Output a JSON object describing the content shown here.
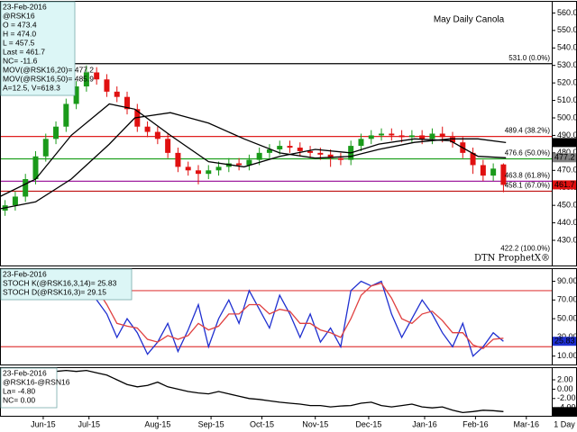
{
  "chart_data": [
    {
      "type": "candlestick",
      "title": "May Daily Canola",
      "watermark": "DTN ProphetX®",
      "info": [
        "23-Feb-2016",
        "@RSK16",
        "O = 473.4",
        "H = 474.0",
        "L = 457.5",
        "Last = 461.7",
        "NC= -11.6",
        "MOV(@RSK16,20)= 477.2",
        "MOV(@RSK16,50)= 485.9",
        "A=12.5, V=618.3"
      ],
      "info_color": "#dcf6f6",
      "up_color": "#1a9a1a",
      "down_color": "#e01010",
      "x": [
        2,
        6,
        10,
        14,
        18,
        22,
        26,
        30,
        34,
        38,
        42,
        46,
        50,
        54,
        58,
        62,
        66,
        70,
        74,
        78,
        82,
        86,
        90,
        94,
        98,
        102,
        106,
        110,
        114,
        118,
        122,
        126,
        130,
        134,
        138,
        142,
        146,
        150,
        154,
        158,
        162,
        166,
        170,
        174,
        178,
        182,
        186,
        190,
        194,
        198
      ],
      "open": [
        447,
        450,
        455,
        465,
        478,
        488,
        495,
        508,
        518,
        526,
        522,
        515,
        512,
        505,
        495,
        492,
        488,
        480,
        472,
        470,
        468,
        470,
        472,
        474,
        473,
        476,
        480,
        482,
        484,
        483,
        481,
        480,
        479,
        477,
        476,
        484,
        488,
        490,
        491,
        490,
        489,
        490,
        488,
        491,
        489,
        486,
        480,
        473,
        467,
        473.4
      ],
      "high": [
        453,
        458,
        468,
        481,
        491,
        498,
        511,
        521,
        530,
        529,
        525,
        518,
        515,
        508,
        498,
        495,
        491,
        483,
        475,
        473,
        473,
        475,
        477,
        477,
        479,
        483,
        485,
        487,
        487,
        486,
        484,
        483,
        482,
        480,
        487,
        491,
        493,
        494,
        494,
        493,
        493,
        493,
        494,
        495,
        492,
        489,
        483,
        476,
        474,
        474
      ],
      "low": [
        444,
        447,
        452,
        462,
        475,
        485,
        492,
        505,
        515,
        519,
        512,
        509,
        502,
        492,
        489,
        485,
        477,
        469,
        467,
        462,
        465,
        467,
        469,
        470,
        470,
        473,
        477,
        479,
        480,
        478,
        477,
        476,
        472,
        473,
        473,
        481,
        485,
        487,
        487,
        486,
        486,
        485,
        485,
        486,
        483,
        477,
        468,
        464,
        464,
        457.5
      ],
      "close": [
        450,
        455,
        465,
        478,
        488,
        495,
        508,
        518,
        526,
        522,
        515,
        512,
        505,
        495,
        492,
        488,
        480,
        472,
        470,
        468,
        470,
        472,
        474,
        473,
        476,
        480,
        482,
        484,
        483,
        481,
        480,
        479,
        477,
        476,
        484,
        488,
        490,
        491,
        490,
        489,
        490,
        488,
        491,
        489,
        486,
        480,
        473,
        467,
        471,
        461.7
      ],
      "overlays": [
        {
          "color": "#000000",
          "x": [
            0,
            14,
            28,
            43,
            53,
            67,
            82,
            96,
            110,
            124,
            138,
            149,
            163,
            177,
            188,
            199
          ],
          "values": [
            455,
            465,
            490,
            508,
            505,
            490,
            475,
            472,
            478,
            482,
            480,
            485,
            488,
            487,
            478,
            477.2
          ]
        },
        {
          "color": "#000000",
          "x": [
            0,
            14,
            28,
            43,
            53,
            67,
            82,
            96,
            110,
            124,
            138,
            149,
            163,
            177,
            188,
            199
          ],
          "values": [
            448,
            452,
            465,
            485,
            500,
            503,
            497,
            488,
            480,
            477,
            478,
            482,
            486,
            488,
            488,
            485.9
          ]
        }
      ],
      "levels": [
        {
          "value": 531.0,
          "label": "531.0 (0.0%)",
          "color": "#000000"
        },
        {
          "value": 489.4,
          "label": "489.4 (38.2%)",
          "color": "#e02020"
        },
        {
          "value": 476.6,
          "label": "476.6 (50.0%)",
          "color": "#20a020"
        },
        {
          "value": 463.8,
          "label": "463.8 (61.8%)",
          "color": "#a020a0"
        },
        {
          "value": 458.1,
          "label": "458.1 (67.0%)",
          "color": "#c01010"
        },
        {
          "value": 422.2,
          "label": "422.2 (100.0%)",
          "color": null
        }
      ],
      "last_labels": [
        {
          "value": 485.9,
          "label": "485.9",
          "color": "#000000"
        },
        {
          "value": 477.2,
          "label": "477.2",
          "color": "#808080"
        },
        {
          "value": 461.7,
          "label": "461.7",
          "color": "#e01010"
        }
      ],
      "ylim": [
        415.6,
        566.9
      ],
      "yticks": [
        {
          "value": 430,
          "label": "430.0"
        },
        {
          "value": 440,
          "label": "440.0"
        },
        {
          "value": 450,
          "label": "450.0"
        },
        {
          "value": 460,
          "label": "460.0"
        },
        {
          "value": 470,
          "label": "470.0"
        },
        {
          "value": 480,
          "label": "480.0"
        },
        {
          "value": 490,
          "label": "490.0"
        },
        {
          "value": 500,
          "label": "500.0"
        },
        {
          "value": 510,
          "label": "510.0"
        },
        {
          "value": 520,
          "label": "520.0"
        },
        {
          "value": 530,
          "label": "530.0"
        },
        {
          "value": 540,
          "label": "540.0"
        },
        {
          "value": 550,
          "label": "550.0"
        },
        {
          "value": 560,
          "label": "560.0"
        }
      ]
    },
    {
      "type": "line",
      "info": [
        "23-Feb-2016",
        "STOCH K(@RSK16,3,14)= 25.83",
        "STOCH D(@RSK16,3)= 29.15"
      ],
      "info_color": "#dcf6f6",
      "x": [
        2,
        6,
        10,
        14,
        18,
        22,
        26,
        30,
        34,
        38,
        42,
        46,
        50,
        54,
        58,
        62,
        66,
        70,
        74,
        78,
        82,
        86,
        90,
        94,
        98,
        102,
        106,
        110,
        114,
        118,
        122,
        126,
        130,
        134,
        138,
        142,
        146,
        150,
        154,
        158,
        162,
        166,
        170,
        174,
        178,
        182,
        186,
        190,
        194,
        198
      ],
      "series": [
        {
          "color": "#1f2fd0",
          "values": [
            null,
            null,
            null,
            null,
            null,
            null,
            null,
            95,
            92,
            70,
            55,
            30,
            50,
            35,
            12,
            25,
            45,
            15,
            38,
            65,
            20,
            50,
            70,
            45,
            80,
            60,
            40,
            75,
            55,
            30,
            55,
            25,
            40,
            20,
            80,
            90,
            85,
            90,
            55,
            30,
            50,
            70,
            55,
            35,
            20,
            45,
            10,
            20,
            35,
            25.83
          ]
        },
        {
          "color": "#e04040",
          "values": [
            null,
            null,
            null,
            null,
            null,
            null,
            null,
            90,
            93,
            82,
            65,
            45,
            42,
            40,
            28,
            25,
            32,
            28,
            32,
            45,
            38,
            42,
            55,
            55,
            65,
            65,
            55,
            60,
            58,
            45,
            45,
            38,
            35,
            30,
            50,
            75,
            85,
            88,
            72,
            50,
            45,
            55,
            58,
            48,
            35,
            35,
            22,
            18,
            28,
            29.15
          ]
        }
      ],
      "levels": [
        {
          "value": 80,
          "label": null,
          "color": "#e04040"
        },
        {
          "value": 20,
          "label": null,
          "color": "#e04040"
        }
      ],
      "last_labels": [
        {
          "value": 25.83,
          "label": "25.83",
          "color": "#1f2fd0"
        }
      ],
      "ylim": [
        1,
        104
      ],
      "yticks": [
        {
          "value": 10,
          "label": "10.00"
        },
        {
          "value": 30,
          "label": "30.00"
        },
        {
          "value": 50,
          "label": "50.00"
        },
        {
          "value": 70,
          "label": "70.00"
        },
        {
          "value": 90,
          "label": "90.00"
        }
      ]
    },
    {
      "type": "line",
      "info": [
        "23-Feb-2016",
        "@RSK16-@RSN16",
        "La= -4.80",
        "NC= 0.00"
      ],
      "info_color": "#ffffff",
      "x": [
        2,
        6,
        10,
        14,
        18,
        22,
        26,
        30,
        34,
        38,
        42,
        46,
        50,
        54,
        58,
        62,
        66,
        70,
        74,
        78,
        82,
        86,
        90,
        94,
        98,
        102,
        106,
        110,
        114,
        118,
        122,
        126,
        130,
        134,
        138,
        142,
        146,
        150,
        154,
        158,
        162,
        166,
        170,
        174,
        178,
        182,
        186,
        190,
        194,
        198
      ],
      "series": [
        {
          "color": "#000000",
          "values": [
            null,
            null,
            null,
            3.0,
            3.5,
            3.8,
            4.0,
            3.8,
            4.0,
            3.5,
            3.0,
            2.0,
            1.0,
            0.5,
            0.8,
            1.5,
            0.5,
            0.0,
            -0.5,
            -0.8,
            -1.0,
            -0.5,
            -1.0,
            -1.5,
            -2.0,
            -2.2,
            -2.5,
            -2.8,
            -3.0,
            -3.2,
            -3.5,
            -3.5,
            -3.8,
            -3.6,
            -3.5,
            -3.0,
            -2.8,
            -3.5,
            -3.8,
            -3.5,
            -3.2,
            -3.8,
            -4.0,
            -3.8,
            -4.5,
            -5.0,
            -4.8,
            -4.5,
            -4.6,
            -4.8
          ]
        }
      ],
      "levels": [],
      "last_labels": [
        {
          "value": -4.8,
          "label": "-4.80",
          "color": "#000000"
        }
      ],
      "ylim": [
        -5.7,
        4.7
      ],
      "yticks": [
        {
          "value": -4,
          "label": "-4.00"
        },
        {
          "value": -2,
          "label": "-2.00"
        },
        {
          "value": 0,
          "label": "0.00"
        },
        {
          "value": 2,
          "label": "2.00"
        }
      ],
      "xlim": [
        0,
        217
      ],
      "xticks": [
        {
          "value": 17,
          "label": "Jun-15"
        },
        {
          "value": 35,
          "label": "Jul-15"
        },
        {
          "value": 62,
          "label": "Aug-15"
        },
        {
          "value": 83,
          "label": "Sep-15"
        },
        {
          "value": 103,
          "label": "Oct-15"
        },
        {
          "value": 124,
          "label": "Nov-15"
        },
        {
          "value": 145,
          "label": "Dec-15"
        },
        {
          "value": 167,
          "label": "Jan-16"
        },
        {
          "value": 187,
          "label": "Feb-16"
        },
        {
          "value": 207,
          "label": "Mar-16"
        }
      ],
      "period": "1 Day"
    }
  ]
}
